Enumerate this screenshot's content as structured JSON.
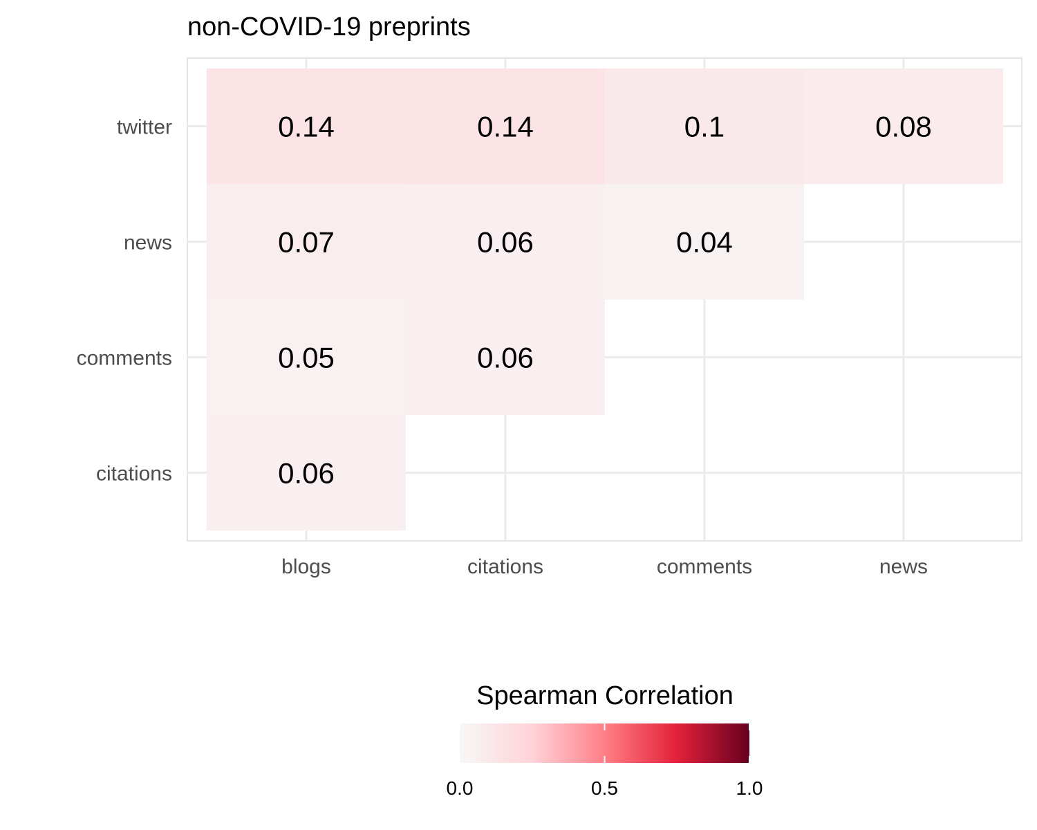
{
  "chart_data": {
    "type": "heatmap",
    "title": "non-COVID-19 preprints",
    "x_categories": [
      "blogs",
      "citations",
      "comments",
      "news"
    ],
    "y_categories": [
      "citations",
      "comments",
      "news",
      "twitter"
    ],
    "cells": [
      {
        "x": "blogs",
        "y": "twitter",
        "value": 0.14,
        "label": "0.14"
      },
      {
        "x": "citations",
        "y": "twitter",
        "value": 0.14,
        "label": "0.14"
      },
      {
        "x": "comments",
        "y": "twitter",
        "value": 0.1,
        "label": "0.1"
      },
      {
        "x": "news",
        "y": "twitter",
        "value": 0.08,
        "label": "0.08"
      },
      {
        "x": "blogs",
        "y": "news",
        "value": 0.07,
        "label": "0.07"
      },
      {
        "x": "citations",
        "y": "news",
        "value": 0.06,
        "label": "0.06"
      },
      {
        "x": "comments",
        "y": "news",
        "value": 0.04,
        "label": "0.04"
      },
      {
        "x": "blogs",
        "y": "comments",
        "value": 0.05,
        "label": "0.05"
      },
      {
        "x": "citations",
        "y": "comments",
        "value": 0.06,
        "label": "0.06"
      },
      {
        "x": "blogs",
        "y": "citations",
        "value": 0.06,
        "label": "0.06"
      }
    ],
    "legend": {
      "title": "Spearman Correlation",
      "range": [
        0,
        1
      ],
      "ticks": [
        "0.0",
        "0.5",
        "1.0"
      ],
      "placement": "bottom",
      "colors": [
        "#f7f7f7",
        "#fddbc7",
        "#ff8a8a",
        "#e2213a",
        "#67001f"
      ]
    },
    "grid": true
  }
}
